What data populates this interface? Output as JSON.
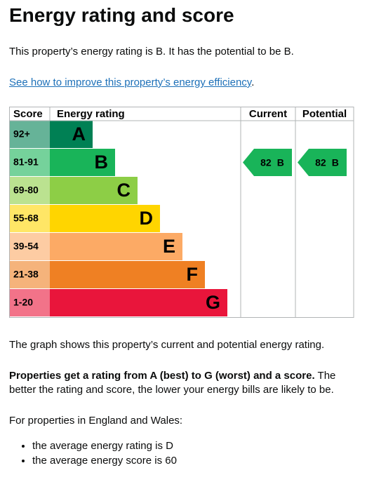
{
  "header": {
    "title": "Energy rating and score"
  },
  "intro": "This property’s energy rating is B. It has the potential to be B.",
  "link": {
    "text": "See how to improve this property’s energy efficiency",
    "suffix": "."
  },
  "chart": {
    "headers": [
      "Score",
      "Energy rating",
      "Current",
      "Potential"
    ],
    "rows": [
      {
        "score": "92+",
        "letter": "A",
        "color": "#008054"
      },
      {
        "score": "81-91",
        "letter": "B",
        "color": "#19b459"
      },
      {
        "score": "69-80",
        "letter": "C",
        "color": "#8dce46"
      },
      {
        "score": "55-68",
        "letter": "D",
        "color": "#ffd500"
      },
      {
        "score": "39-54",
        "letter": "E",
        "color": "#fcaa65"
      },
      {
        "score": "21-38",
        "letter": "F",
        "color": "#ef8023"
      },
      {
        "score": "1-20",
        "letter": "G",
        "color": "#e9153b"
      }
    ],
    "current": {
      "score": 82,
      "band": "B"
    },
    "potential": {
      "score": 82,
      "band": "B"
    }
  },
  "graph_note": "The graph shows this property’s current and potential energy rating.",
  "explanation": {
    "bold": "Properties get a rating from A (best) to G (worst) and a score.",
    "text": "The better the rating and score, the lower your energy bills are likely to be."
  },
  "region_intro": "For properties in England and Wales:",
  "bullets": [
    "the average energy rating is D",
    "the average energy score is 60"
  ]
}
